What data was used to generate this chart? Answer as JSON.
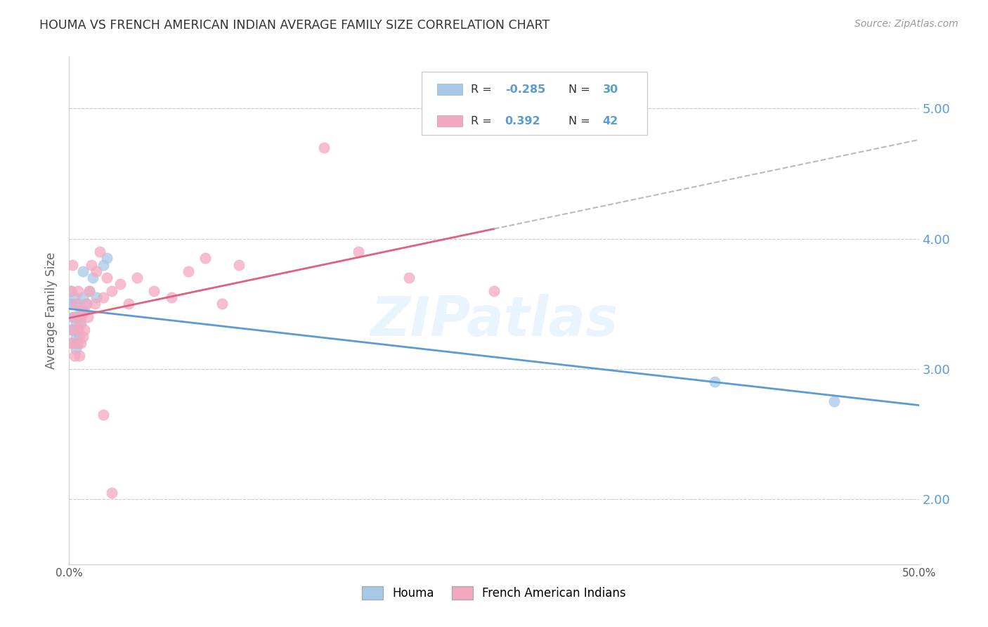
{
  "title": "HOUMA VS FRENCH AMERICAN INDIAN AVERAGE FAMILY SIZE CORRELATION CHART",
  "source": "Source: ZipAtlas.com",
  "ylabel": "Average Family Size",
  "right_yticks": [
    2.0,
    3.0,
    4.0,
    5.0
  ],
  "right_yticklabels": [
    "2.00",
    "3.00",
    "4.00",
    "5.00"
  ],
  "houma_R": -0.285,
  "houma_N": 30,
  "french_R": 0.392,
  "french_N": 42,
  "houma_color": "#a8c8e8",
  "french_color": "#f4a8c0",
  "houma_line_color": "#5b9bd5",
  "french_line_color": "#e06080",
  "dashed_line_color": "#bbbbbb",
  "watermark": "ZIPatlas",
  "watermark_color": "#ddeeff",
  "houma_x": [
    0.001,
    0.001,
    0.001,
    0.002,
    0.002,
    0.002,
    0.003,
    0.003,
    0.003,
    0.004,
    0.004,
    0.004,
    0.005,
    0.005,
    0.005,
    0.006,
    0.006,
    0.007,
    0.007,
    0.008,
    0.008,
    0.009,
    0.01,
    0.012,
    0.014,
    0.016,
    0.02,
    0.022,
    0.38,
    0.45
  ],
  "houma_y": [
    3.5,
    3.3,
    3.6,
    3.2,
    3.4,
    3.5,
    3.3,
    3.4,
    3.55,
    3.15,
    3.25,
    3.35,
    3.2,
    3.3,
    3.5,
    3.25,
    3.4,
    3.35,
    3.45,
    3.55,
    3.75,
    3.45,
    3.5,
    3.6,
    3.7,
    3.55,
    3.8,
    3.85,
    2.9,
    2.75
  ],
  "french_x": [
    0.001,
    0.001,
    0.002,
    0.002,
    0.003,
    0.003,
    0.004,
    0.004,
    0.005,
    0.005,
    0.006,
    0.006,
    0.007,
    0.007,
    0.008,
    0.008,
    0.009,
    0.01,
    0.011,
    0.012,
    0.013,
    0.015,
    0.016,
    0.018,
    0.02,
    0.022,
    0.025,
    0.03,
    0.035,
    0.04,
    0.05,
    0.06,
    0.07,
    0.08,
    0.09,
    0.1,
    0.15,
    0.17,
    0.2,
    0.25,
    0.02,
    0.025
  ],
  "french_y": [
    3.2,
    3.6,
    3.3,
    3.8,
    3.1,
    3.4,
    3.2,
    3.5,
    3.3,
    3.6,
    3.1,
    3.35,
    3.2,
    3.4,
    3.25,
    3.45,
    3.3,
    3.5,
    3.4,
    3.6,
    3.8,
    3.5,
    3.75,
    3.9,
    3.55,
    3.7,
    3.6,
    3.65,
    3.5,
    3.7,
    3.6,
    3.55,
    3.75,
    3.85,
    3.5,
    3.8,
    4.7,
    3.9,
    3.7,
    3.6,
    2.65,
    2.05
  ],
  "xlim": [
    0,
    0.5
  ],
  "ylim": [
    1.5,
    5.4
  ],
  "xtick_positions": [
    0.0,
    0.5
  ],
  "xtick_labels": [
    "0.0%",
    "50.0%"
  ],
  "grid_yticks": [
    2.0,
    3.0,
    4.0,
    5.0
  ],
  "legend_box_color": "#5b9bd5",
  "legend_R_color": "#5b9bd5",
  "legend_N_color": "#5b9bd5"
}
